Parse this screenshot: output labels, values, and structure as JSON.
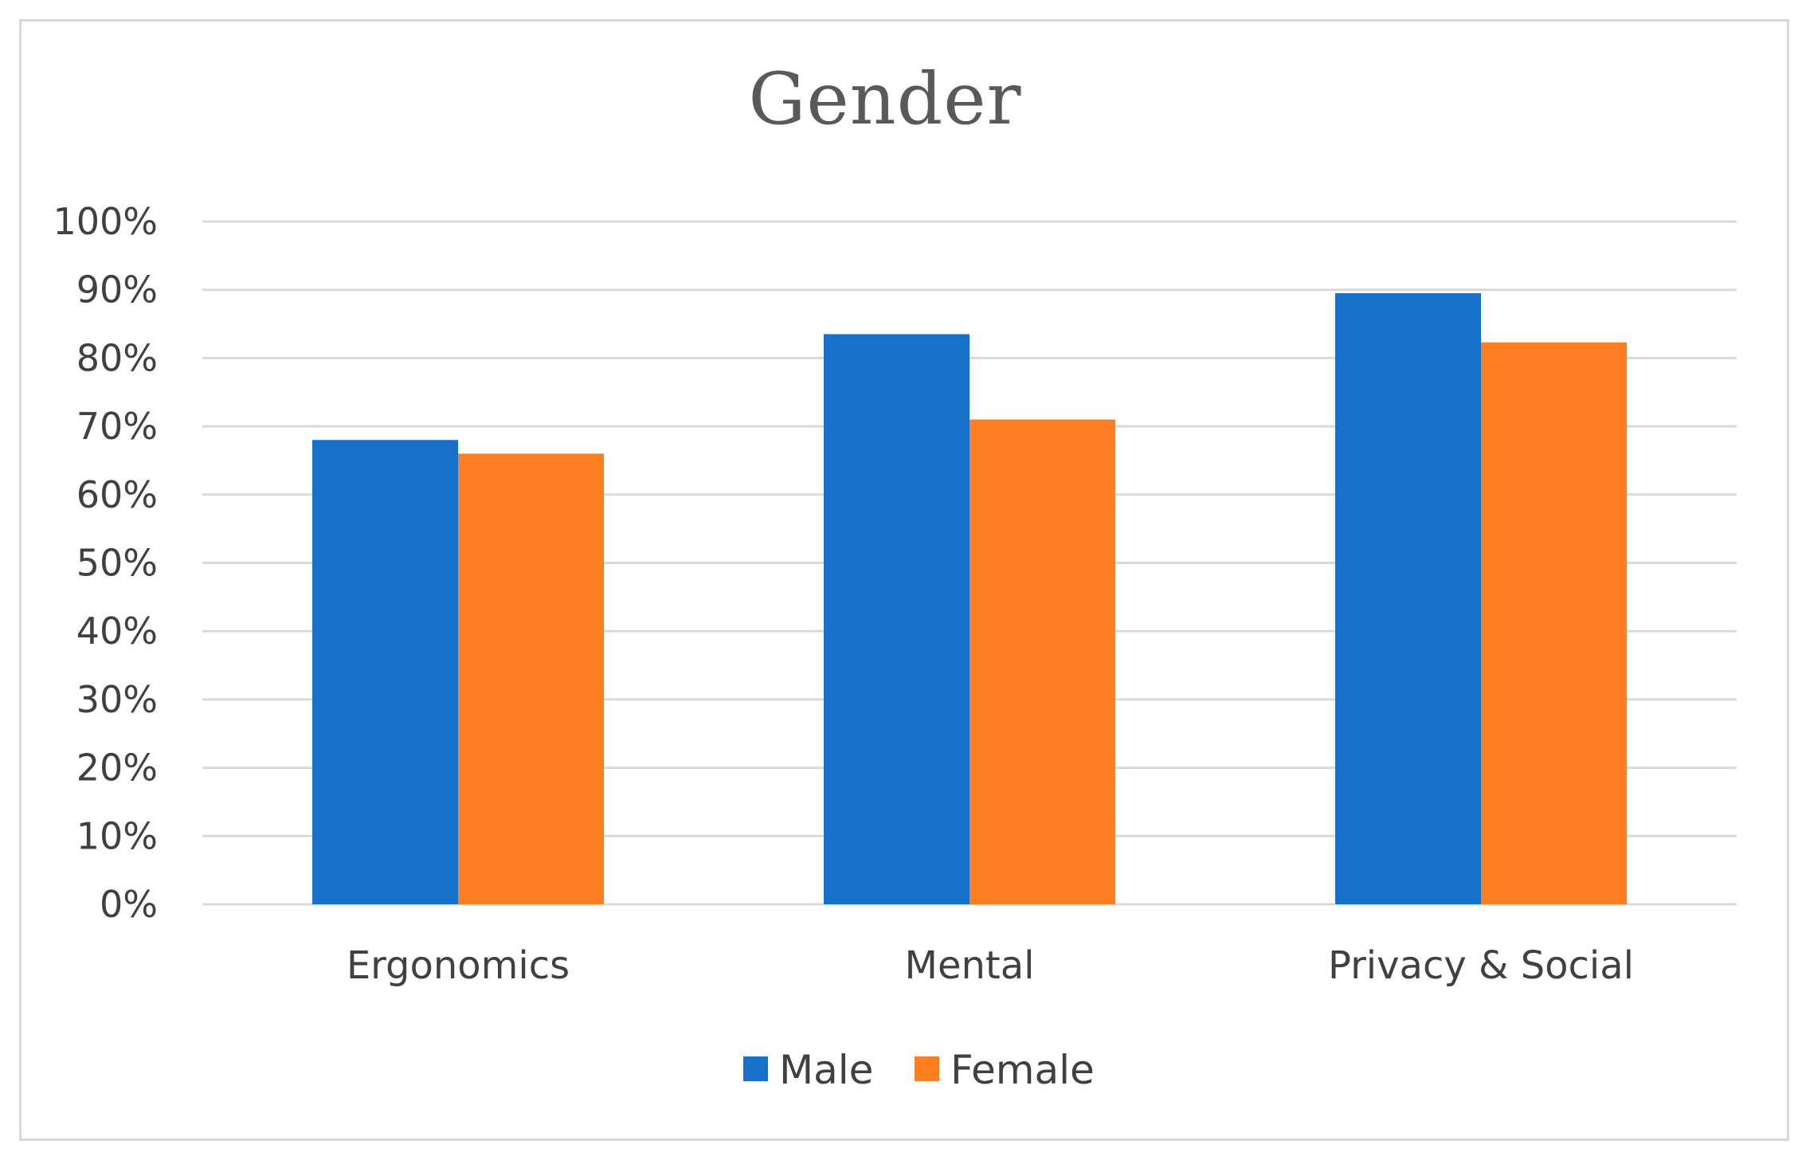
{
  "chart_data": {
    "type": "bar",
    "title": "Gender",
    "categories": [
      "Ergonomics",
      "Mental",
      "Privacy & Social"
    ],
    "series": [
      {
        "name": "Male",
        "values": [
          68,
          83.5,
          89.5
        ],
        "color": "#1771CB"
      },
      {
        "name": "Female",
        "values": [
          66,
          71,
          82.3
        ],
        "color": "#FE7F22"
      }
    ],
    "yticks": [
      "0%",
      "10%",
      "20%",
      "30%",
      "40%",
      "50%",
      "60%",
      "70%",
      "80%",
      "90%",
      "100%"
    ],
    "ylim": [
      0,
      100
    ],
    "y_unit": "%",
    "grid": true,
    "legend_position": "bottom-center",
    "xlabel": "",
    "ylabel": ""
  }
}
